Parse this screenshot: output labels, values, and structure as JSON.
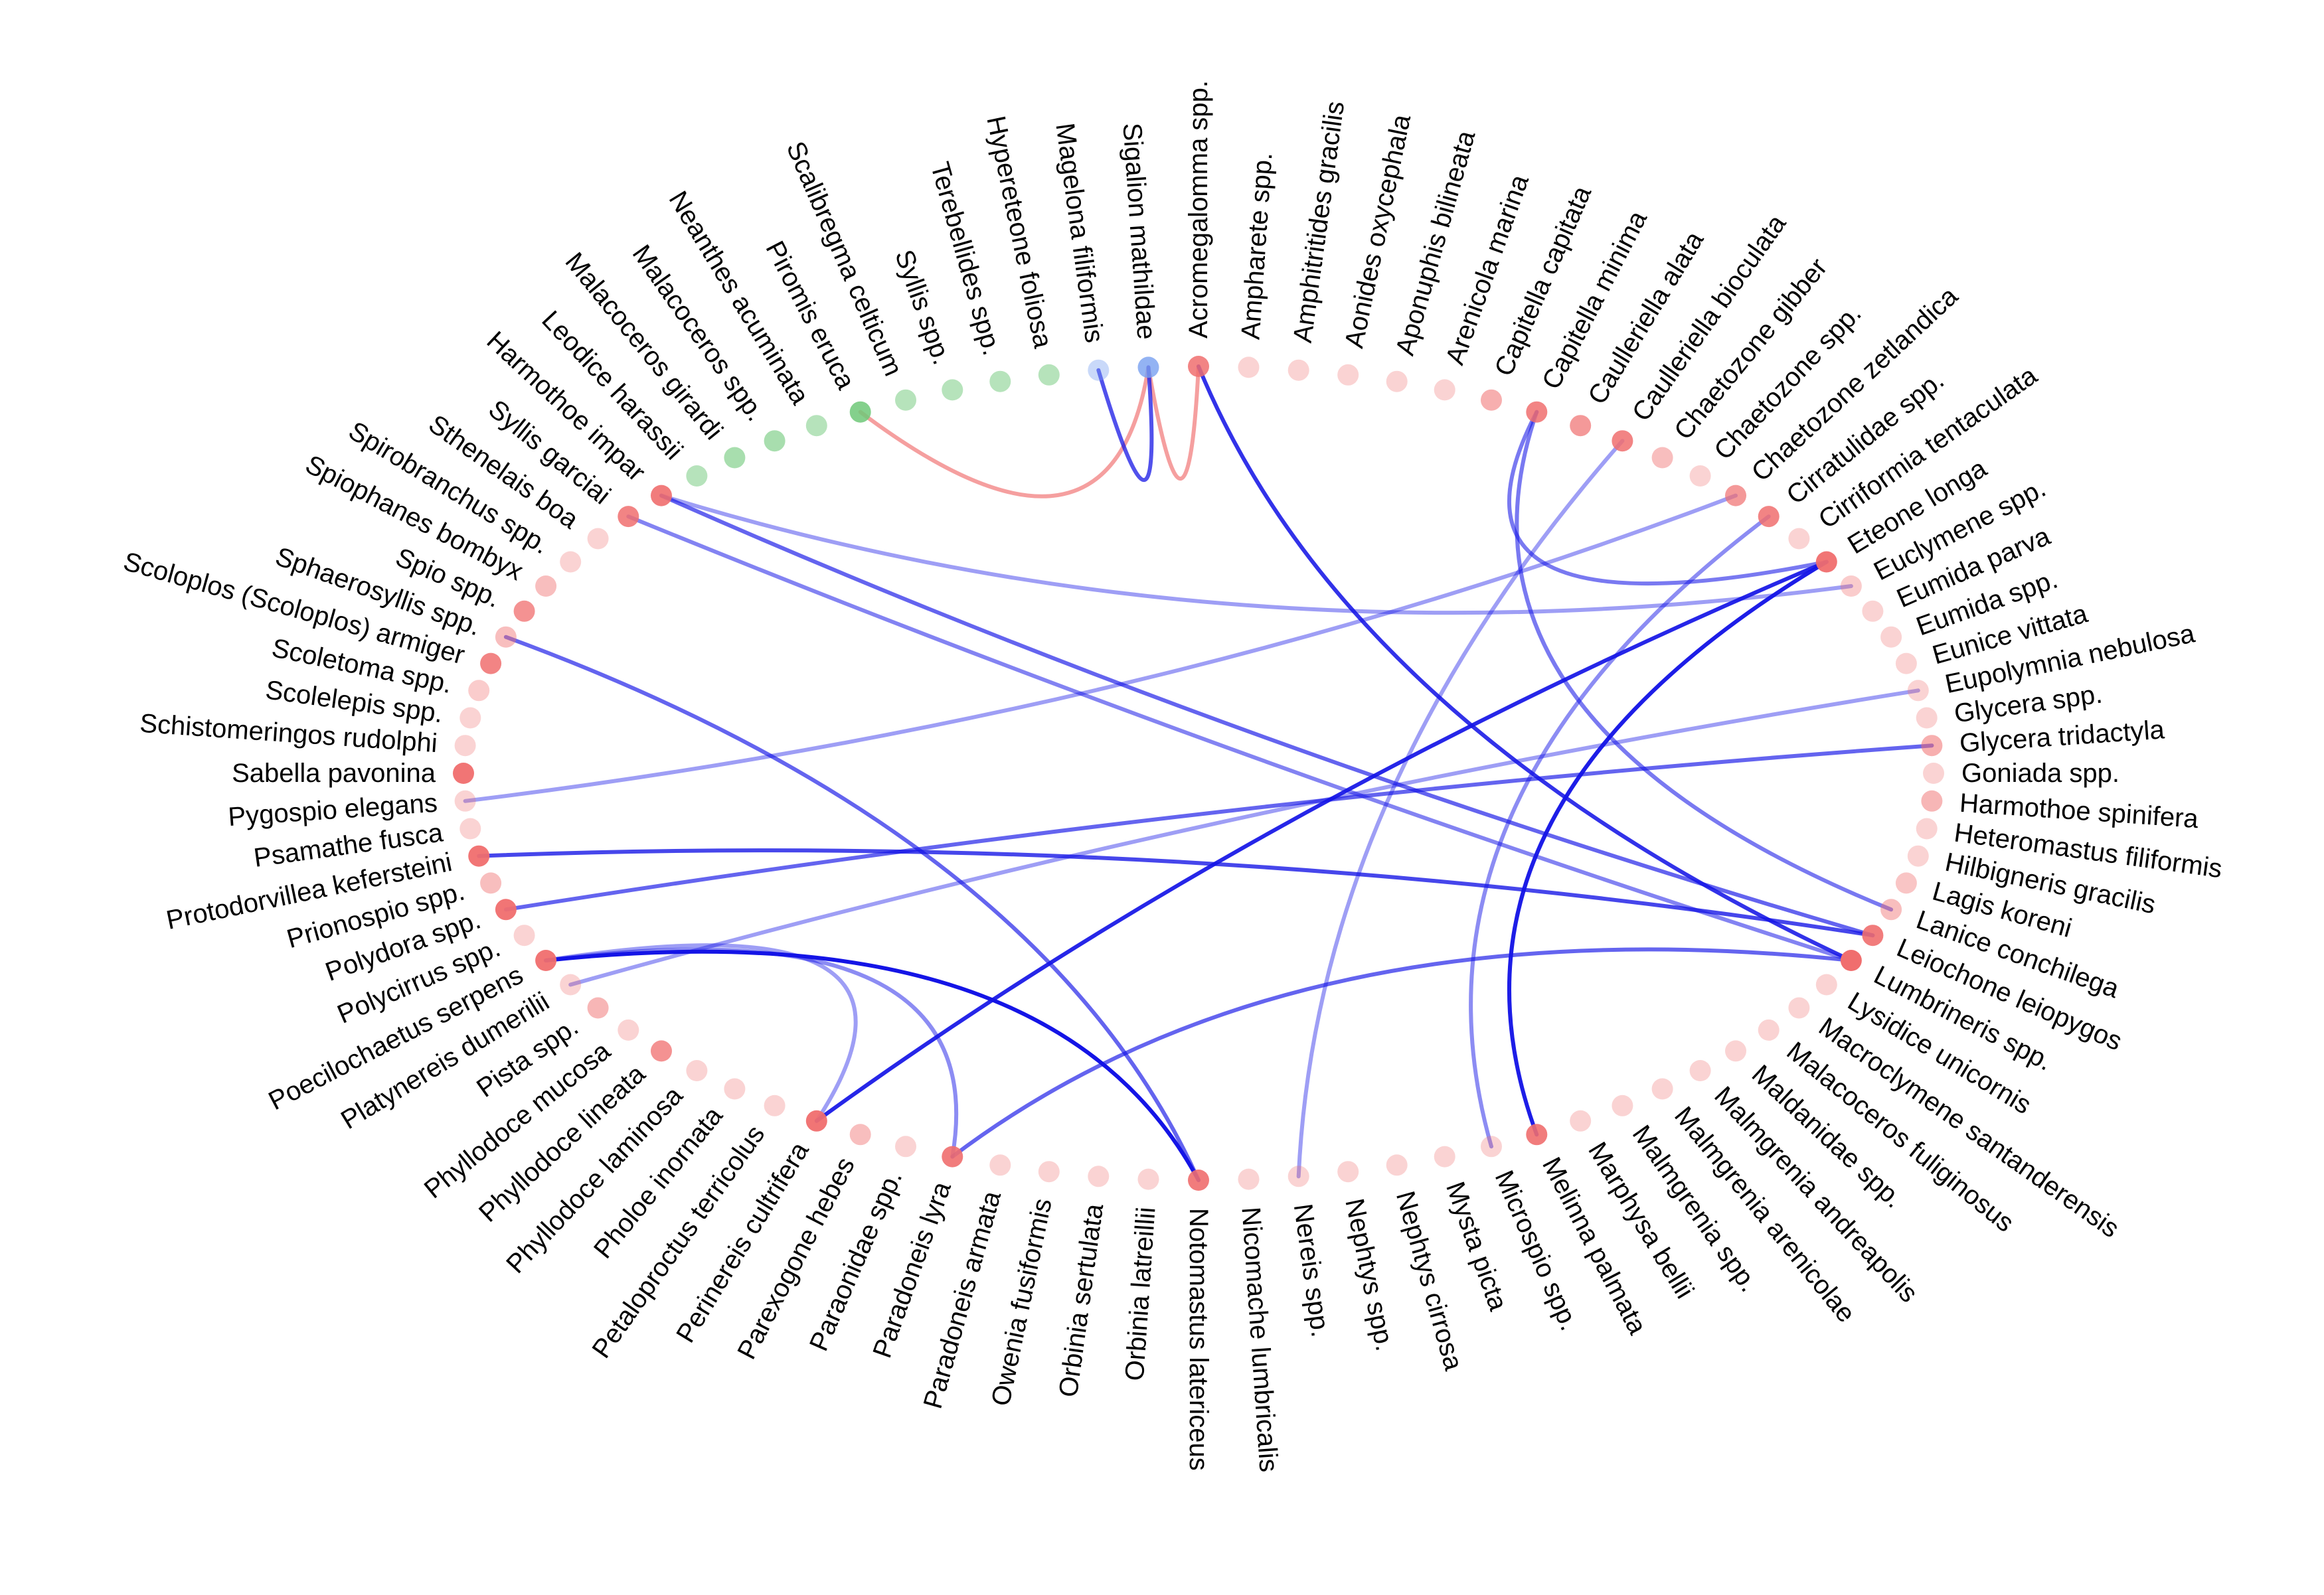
{
  "network": {
    "nodes": [
      {
        "label": "Acromegalomma spp.",
        "group": "red",
        "strength": 0.85
      },
      {
        "label": "Ampharete spp.",
        "group": "red",
        "strength": 0.3
      },
      {
        "label": "Amphitritides gracilis",
        "group": "red",
        "strength": 0.3
      },
      {
        "label": "Aonides oxycephala",
        "group": "red",
        "strength": 0.3
      },
      {
        "label": "Aponuphis bilineata",
        "group": "red",
        "strength": 0.3
      },
      {
        "label": "Arenicola marina",
        "group": "red",
        "strength": 0.3
      },
      {
        "label": "Capitella capitata",
        "group": "red",
        "strength": 0.55
      },
      {
        "label": "Capitella minima",
        "group": "red",
        "strength": 0.85
      },
      {
        "label": "Caulleriella alata",
        "group": "red",
        "strength": 0.7
      },
      {
        "label": "Caulleriella bioculata",
        "group": "red",
        "strength": 0.85
      },
      {
        "label": "Chaetozone gibber",
        "group": "red",
        "strength": 0.45
      },
      {
        "label": "Chaetozone spp.",
        "group": "red",
        "strength": 0.3
      },
      {
        "label": "Chaetozone zetlandica",
        "group": "red",
        "strength": 0.7
      },
      {
        "label": "Cirratulidae spp.",
        "group": "red",
        "strength": 0.85
      },
      {
        "label": "Cirriformia tentaculata",
        "group": "red",
        "strength": 0.3
      },
      {
        "label": "Eteone longa",
        "group": "red",
        "strength": 0.95
      },
      {
        "label": "Euclymene spp.",
        "group": "red",
        "strength": 0.35
      },
      {
        "label": "Eumida parva",
        "group": "red",
        "strength": 0.3
      },
      {
        "label": "Eumida spp.",
        "group": "red",
        "strength": 0.3
      },
      {
        "label": "Eunice vittata",
        "group": "red",
        "strength": 0.3
      },
      {
        "label": "Eupolymnia nebulosa",
        "group": "red",
        "strength": 0.3
      },
      {
        "label": "Glycera spp.",
        "group": "red",
        "strength": 0.3
      },
      {
        "label": "Glycera tridactyla",
        "group": "red",
        "strength": 0.55
      },
      {
        "label": "Goniada spp.",
        "group": "red",
        "strength": 0.3
      },
      {
        "label": "Harmothoe spinifera",
        "group": "red",
        "strength": 0.5
      },
      {
        "label": "Heteromastus filiformis",
        "group": "red",
        "strength": 0.3
      },
      {
        "label": "Hilbigneris gracilis",
        "group": "red",
        "strength": 0.3
      },
      {
        "label": "Lagis koreni",
        "group": "red",
        "strength": 0.4
      },
      {
        "label": "Lanice conchilega",
        "group": "red",
        "strength": 0.45
      },
      {
        "label": "Leiochone leiopygos",
        "group": "red",
        "strength": 0.9
      },
      {
        "label": "Lumbrineris spp.",
        "group": "red",
        "strength": 1.0
      },
      {
        "label": "Lysidice unicornis",
        "group": "red",
        "strength": 0.3
      },
      {
        "label": "Macroclymene santanderensis",
        "group": "red",
        "strength": 0.3
      },
      {
        "label": "Malacoceros fuliginosus",
        "group": "red",
        "strength": 0.3
      },
      {
        "label": "Maldanidae spp.",
        "group": "red",
        "strength": 0.3
      },
      {
        "label": "Malmgrenia andreapolis",
        "group": "red",
        "strength": 0.3
      },
      {
        "label": "Malmgrenia arenicolae",
        "group": "red",
        "strength": 0.3
      },
      {
        "label": "Malmgrenia spp.",
        "group": "red",
        "strength": 0.3
      },
      {
        "label": "Marphysa bellii",
        "group": "red",
        "strength": 0.3
      },
      {
        "label": "Melinna palmata",
        "group": "red",
        "strength": 0.9
      },
      {
        "label": "Microspio spp.",
        "group": "red",
        "strength": 0.3
      },
      {
        "label": "Mysta picta",
        "group": "red",
        "strength": 0.3
      },
      {
        "label": "Nephtys cirrosa",
        "group": "red",
        "strength": 0.3
      },
      {
        "label": "Nephtys spp.",
        "group": "red",
        "strength": 0.3
      },
      {
        "label": "Nereis spp.",
        "group": "red",
        "strength": 0.3
      },
      {
        "label": "Nicomache lumbricalis",
        "group": "red",
        "strength": 0.3
      },
      {
        "label": "Notomastus latericeus",
        "group": "red",
        "strength": 0.9
      },
      {
        "label": "Orbinia latreillii",
        "group": "red",
        "strength": 0.3
      },
      {
        "label": "Orbinia sertulata",
        "group": "red",
        "strength": 0.3
      },
      {
        "label": "Owenia fusiformis",
        "group": "red",
        "strength": 0.3
      },
      {
        "label": "Paradoneis armata",
        "group": "red",
        "strength": 0.3
      },
      {
        "label": "Paradoneis lyra",
        "group": "red",
        "strength": 0.9
      },
      {
        "label": "Paraonidae spp.",
        "group": "red",
        "strength": 0.3
      },
      {
        "label": "Parexogone hebes",
        "group": "red",
        "strength": 0.45
      },
      {
        "label": "Perinereis cultrifera",
        "group": "red",
        "strength": 0.95
      },
      {
        "label": "Petaloproctus terricolus",
        "group": "red",
        "strength": 0.3
      },
      {
        "label": "Pholoe inornata",
        "group": "red",
        "strength": 0.3
      },
      {
        "label": "Phyllodoce laminosa",
        "group": "red",
        "strength": 0.3
      },
      {
        "label": "Phyllodoce lineata",
        "group": "red",
        "strength": 0.75
      },
      {
        "label": "Phyllodoce mucosa",
        "group": "red",
        "strength": 0.3
      },
      {
        "label": "Pista spp.",
        "group": "red",
        "strength": 0.5
      },
      {
        "label": "Platynereis dumerilii",
        "group": "red",
        "strength": 0.3
      },
      {
        "label": "Poecilochaetus serpens",
        "group": "red",
        "strength": 0.95
      },
      {
        "label": "Polycirrus spp.",
        "group": "red",
        "strength": 0.3
      },
      {
        "label": "Polydora spp.",
        "group": "red",
        "strength": 0.95
      },
      {
        "label": "Prionospio spp.",
        "group": "red",
        "strength": 0.45
      },
      {
        "label": "Protodorvillea kefersteini",
        "group": "red",
        "strength": 0.95
      },
      {
        "label": "Psamathe fusca",
        "group": "red",
        "strength": 0.3
      },
      {
        "label": "Pygospio elegans",
        "group": "red",
        "strength": 0.3
      },
      {
        "label": "Sabella pavonina",
        "group": "red",
        "strength": 0.95
      },
      {
        "label": "Schistomeringos rudolphi",
        "group": "red",
        "strength": 0.3
      },
      {
        "label": "Scolelepis spp.",
        "group": "red",
        "strength": 0.3
      },
      {
        "label": "Scoletoma spp.",
        "group": "red",
        "strength": 0.35
      },
      {
        "label": "Scoloplos (Scoloplos) armiger",
        "group": "red",
        "strength": 0.85
      },
      {
        "label": "Sphaerosyllis spp.",
        "group": "red",
        "strength": 0.45
      },
      {
        "label": "Spio spp.",
        "group": "red",
        "strength": 0.75
      },
      {
        "label": "Spiophanes bombyx",
        "group": "red",
        "strength": 0.45
      },
      {
        "label": "Spirobranchus spp.",
        "group": "red",
        "strength": 0.3
      },
      {
        "label": "Sthenelais boa",
        "group": "red",
        "strength": 0.3
      },
      {
        "label": "Syllis garciai",
        "group": "red",
        "strength": 0.85
      },
      {
        "label": "Harmothoe impar",
        "group": "red",
        "strength": 0.9
      },
      {
        "label": "Leodice harassii",
        "group": "green",
        "strength": 0.5
      },
      {
        "label": "Malacoceros girardi",
        "group": "green",
        "strength": 0.6
      },
      {
        "label": "Malacoceros spp.",
        "group": "green",
        "strength": 0.6
      },
      {
        "label": "Neanthes acuminata",
        "group": "green",
        "strength": 0.5
      },
      {
        "label": "Piromis eruca",
        "group": "green",
        "strength": 0.85
      },
      {
        "label": "Scalibregma celticum",
        "group": "green",
        "strength": 0.5
      },
      {
        "label": "Syllis spp.",
        "group": "green",
        "strength": 0.5
      },
      {
        "label": "Terebellides spp.",
        "group": "green",
        "strength": 0.5
      },
      {
        "label": "Hypereteone foliosa",
        "group": "green",
        "strength": 0.5
      },
      {
        "label": "Magelona filiformis",
        "group": "blue",
        "strength": 0.4
      },
      {
        "label": "Sigalion mathildae",
        "group": "blue",
        "strength": 0.8
      }
    ],
    "edges": [
      {
        "from": "Sigalion mathildae",
        "to": "Piromis eruca",
        "sign": "positive",
        "strength": 0.6
      },
      {
        "from": "Sigalion mathildae",
        "to": "Acromegalomma spp.",
        "sign": "positive",
        "strength": 0.6
      },
      {
        "from": "Magelona filiformis",
        "to": "Sigalion mathildae",
        "sign": "negative",
        "strength": 0.7
      },
      {
        "from": "Acromegalomma spp.",
        "to": "Lumbrineris spp.",
        "sign": "negative",
        "strength": 0.85
      },
      {
        "from": "Sphaerosyllis spp.",
        "to": "Notomastus latericeus",
        "sign": "negative",
        "strength": 0.6
      },
      {
        "from": "Syllis garciai",
        "to": "Lumbrineris spp.",
        "sign": "negative",
        "strength": 0.45
      },
      {
        "from": "Harmothoe impar",
        "to": "Leiochone leiopygos",
        "sign": "negative",
        "strength": 0.6
      },
      {
        "from": "Protodorvillea kefersteini",
        "to": "Leiochone leiopygos",
        "sign": "negative",
        "strength": 0.75
      },
      {
        "from": "Polydora spp.",
        "to": "Glycera tridactyla",
        "sign": "negative",
        "strength": 0.6
      },
      {
        "from": "Poecilochaetus serpens",
        "to": "Notomastus latericeus",
        "sign": "negative",
        "strength": 1.0
      },
      {
        "from": "Poecilochaetus serpens",
        "to": "Paradoneis lyra",
        "sign": "negative",
        "strength": 0.4
      },
      {
        "from": "Poecilochaetus serpens",
        "to": "Perinereis cultrifera",
        "sign": "negative",
        "strength": 0.3
      },
      {
        "from": "Perinereis cultrifera",
        "to": "Eteone longa",
        "sign": "negative",
        "strength": 0.9
      },
      {
        "from": "Paradoneis lyra",
        "to": "Lumbrineris spp.",
        "sign": "negative",
        "strength": 0.6
      },
      {
        "from": "Melinna palmata",
        "to": "Eteone longa",
        "sign": "negative",
        "strength": 0.95
      },
      {
        "from": "Capitella minima",
        "to": "Lanice conchilega",
        "sign": "negative",
        "strength": 0.5
      },
      {
        "from": "Caulleriella bioculata",
        "to": "Nereis spp.",
        "sign": "negative",
        "strength": 0.3
      },
      {
        "from": "Cirratulidae spp.",
        "to": "Microspio spp.",
        "sign": "negative",
        "strength": 0.4
      },
      {
        "from": "Eteone longa",
        "to": "Capitella minima",
        "sign": "negative",
        "strength": 0.5
      },
      {
        "from": "Euclymene spp.",
        "to": "Harmothoe impar",
        "sign": "negative",
        "strength": 0.3
      },
      {
        "from": "Eupolymnia nebulosa",
        "to": "Platynereis dumerilii",
        "sign": "negative",
        "strength": 0.3
      },
      {
        "from": "Chaetozone zetlandica",
        "to": "Pygospio elegans",
        "sign": "negative",
        "strength": 0.3
      }
    ]
  }
}
